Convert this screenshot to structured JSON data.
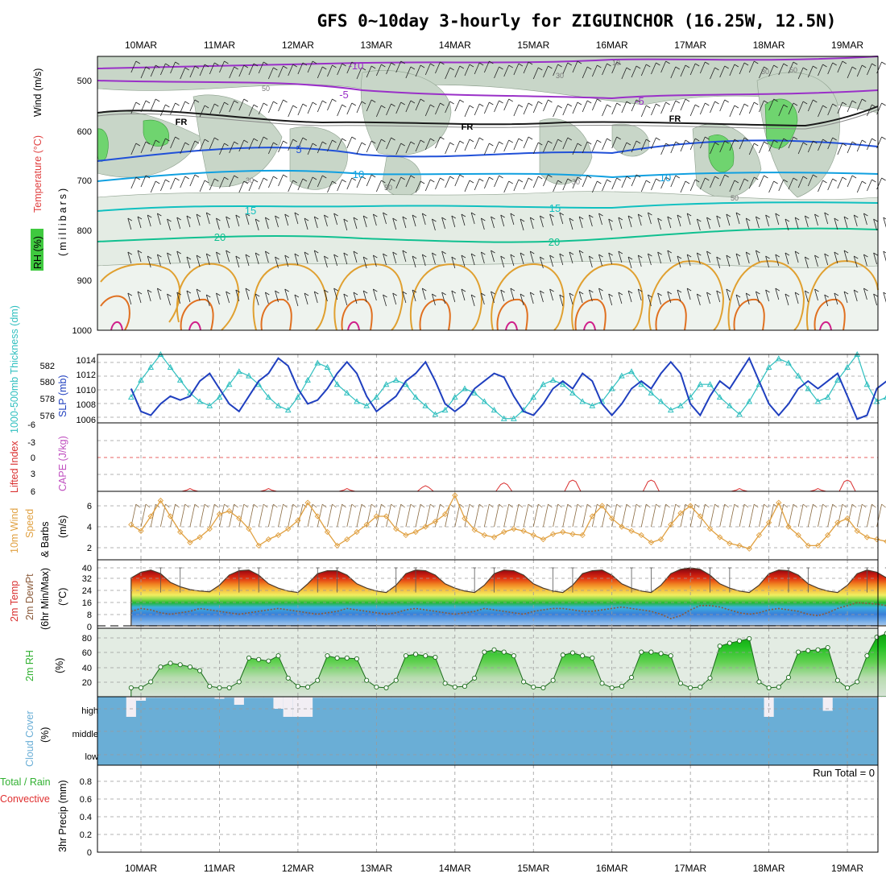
{
  "title": "GFS 0~10day 3-hourly for ZIGUINCHOR (16.25W, 12.5N)",
  "dates": [
    "10MAR",
    "11MAR",
    "12MAR",
    "13MAR",
    "14MAR",
    "15MAR",
    "16MAR",
    "17MAR",
    "18MAR",
    "19MAR"
  ],
  "colors": {
    "rh_legend": "#3fc93f",
    "slp": "#1f3fbf",
    "thickness": "#2fbfbf",
    "lifted_index": "#d93030",
    "cape": "#c050c0",
    "wind_speed": "#e0a040",
    "cloud": "#6aaed6",
    "precip_total": "#30b030",
    "precip_conv": "#e03030"
  },
  "panels": {
    "upper": {
      "ylabel_rh": "RH (%)",
      "ylabel_temp": "Temperature (°C)",
      "ylabel_wind": "Wind (m/s)",
      "ylabel_mb": "(millibars)",
      "pressure_ticks": [
        "500",
        "600",
        "700",
        "800",
        "900",
        "1000"
      ],
      "contour_labels": {
        "t_m10": "-10",
        "t_m5": "-5",
        "t_m5b": "-5",
        "fr1": "FR",
        "fr2": "FR",
        "fr3": "FR",
        "t_5": "5",
        "t_10": "10",
        "t_10b": "10",
        "t_15": "15",
        "t_15b": "15",
        "t_20": "20",
        "t_20b": "20",
        "rh_30": "30",
        "rh_30b": "30",
        "rh_50": "50",
        "rh_30c": "30",
        "rh_50b": "50",
        "rh_50c": "50",
        "rh_30d": "30",
        "rh_10": "10",
        "rh_50d": "50"
      }
    },
    "slp": {
      "ylabel_thick": "1000-500mb Thickness (dm)",
      "ylabel_slp": "SLP (mb)",
      "thick_ticks": [
        "582",
        "580",
        "578",
        "576"
      ],
      "slp_ticks": [
        "1014",
        "1012",
        "1010",
        "1008",
        "1006"
      ]
    },
    "cape": {
      "ylabel_li": "Lifted Index",
      "ylabel_cape": "CAPE (J/kg)",
      "li_ticks": [
        "-6",
        "-3",
        "0",
        "3",
        "6"
      ]
    },
    "wind10m": {
      "ylabel_a": "10m Wind",
      "ylabel_b": "Speed",
      "ylabel_c": "& Barbs",
      "ylabel_unit": "(m/s)",
      "ticks": [
        "6",
        "4",
        "2"
      ]
    },
    "temp2m": {
      "ylabel_a": "2m Temp",
      "ylabel_b": "2m DewPt",
      "ylabel_c": "(6hr Min/Max)",
      "ylabel_unit": "(°C)",
      "ticks": [
        "40",
        "32",
        "24",
        "16",
        "8",
        "0"
      ]
    },
    "rh2m": {
      "ylabel": "2m RH",
      "ylabel_unit": "(%)",
      "ticks": [
        "80",
        "60",
        "40",
        "20"
      ]
    },
    "cloud": {
      "ylabel": "Cloud Cover",
      "ylabel_unit": "(%)",
      "levels": [
        "high",
        "middle",
        "low"
      ]
    },
    "precip": {
      "ylabel_a": "Total / Rain",
      "ylabel_b": "Convective",
      "ylabel_c": "3hr Precip (mm)",
      "ticks": [
        "0.8",
        "0.6",
        "0.4",
        "0.2",
        "0"
      ],
      "run_total": "Run Total = 0"
    }
  },
  "chart_data": [
    {
      "type": "line",
      "title": "Sea level pressure and 1000-500mb thickness",
      "x": [
        "09 21Z",
        "10 00Z",
        "10 03Z",
        "10 06Z",
        "10 09Z",
        "10 12Z",
        "10 15Z",
        "10 18Z",
        "10 21Z",
        "11 00Z",
        "11 03Z",
        "11 06Z",
        "11 09Z",
        "11 12Z",
        "11 15Z",
        "11 18Z",
        "11 21Z",
        "12 00Z",
        "12 03Z",
        "12 06Z",
        "12 09Z",
        "12 12Z",
        "12 15Z",
        "12 18Z",
        "12 21Z",
        "13 00Z",
        "13 03Z",
        "13 06Z",
        "13 09Z",
        "13 12Z",
        "13 15Z",
        "13 18Z",
        "13 21Z",
        "14 00Z",
        "14 03Z",
        "14 06Z",
        "14 09Z",
        "14 12Z",
        "14 15Z",
        "14 18Z",
        "14 21Z",
        "15 00Z",
        "15 03Z",
        "15 06Z",
        "15 09Z",
        "15 12Z",
        "15 15Z",
        "15 18Z",
        "15 21Z",
        "16 00Z",
        "16 03Z",
        "16 06Z",
        "16 09Z",
        "16 12Z",
        "16 15Z",
        "16 18Z",
        "16 21Z",
        "17 00Z",
        "17 03Z",
        "17 06Z",
        "17 09Z",
        "17 12Z",
        "17 15Z",
        "17 18Z",
        "17 21Z",
        "18 00Z",
        "18 03Z",
        "18 06Z",
        "18 09Z",
        "18 12Z",
        "18 15Z",
        "18 18Z",
        "18 21Z",
        "19 00Z",
        "19 03Z",
        "19 06Z",
        "19 09Z",
        "19 12Z"
      ],
      "series": [
        {
          "name": "SLP (mb)",
          "axis": "right",
          "values": [
            1010,
            1007,
            1006.5,
            1008,
            1009,
            1008.5,
            1009,
            1011,
            1012,
            1010,
            1008,
            1007,
            1009,
            1011,
            1012,
            1014,
            1013,
            1010,
            1008,
            1008.5,
            1010,
            1012,
            1013.5,
            1012,
            1009,
            1007,
            1008,
            1009,
            1011,
            1012,
            1013.5,
            1011,
            1008,
            1007,
            1008,
            1010,
            1011,
            1012,
            1011.5,
            1009,
            1007,
            1006.5,
            1008,
            1010,
            1011,
            1010,
            1012,
            1011,
            1008,
            1006.5,
            1008,
            1010,
            1011,
            1010,
            1012,
            1013.5,
            1012,
            1008,
            1006.5,
            1009,
            1011,
            1010,
            1012,
            1014,
            1011,
            1008,
            1006.5,
            1008,
            1010,
            1011,
            1010,
            1011,
            1012,
            1009,
            1006,
            1006.5,
            1010,
            1011
          ]
        },
        {
          "name": "1000-500mb Thickness (dm)",
          "axis": "left",
          "values": [
            578.5,
            580.5,
            582,
            583.5,
            582,
            580.5,
            579,
            578,
            577.5,
            578.5,
            580,
            581.5,
            581,
            580,
            578.5,
            577.5,
            577,
            578.5,
            580.5,
            582.5,
            582,
            580,
            579,
            578,
            577.5,
            578.5,
            580,
            580.5,
            580,
            578.5,
            577.5,
            576.5,
            577,
            578.5,
            579.5,
            579,
            578,
            577,
            576,
            576,
            577,
            578.5,
            580,
            580.5,
            580,
            579,
            578,
            577.5,
            578,
            579.5,
            581,
            581.5,
            580,
            579,
            578,
            577,
            577.5,
            578.5,
            580,
            580,
            578.5,
            577.5,
            576.5,
            578,
            580,
            582,
            583,
            582.5,
            581,
            579.5,
            578,
            578.5,
            580.5,
            582,
            583.5,
            580,
            578,
            578.5
          ]
        }
      ],
      "ylim_left": [
        575.5,
        583.5
      ],
      "ylim_right": [
        1005.5,
        1014.5
      ]
    },
    {
      "type": "line",
      "title": "Lifted index and CAPE",
      "series": [
        {
          "name": "Lifted Index",
          "values_note": "lifted index near +6 with small negative excursions at midday",
          "peaks": [
            [
              "10 15Z",
              5.5
            ],
            [
              "11 15Z",
              5.5
            ],
            [
              "12 15Z",
              5.5
            ],
            [
              "13 15Z",
              5
            ],
            [
              "14 15Z",
              4.5
            ],
            [
              "15 12Z",
              4
            ],
            [
              "16 12Z",
              4
            ],
            [
              "17 15Z",
              5.5
            ],
            [
              "18 15Z",
              5.5
            ],
            [
              "19 00Z",
              4
            ]
          ]
        }
      ],
      "ylim": [
        6,
        -6
      ],
      "ticks": [
        -6,
        -3,
        0,
        3,
        6
      ]
    },
    {
      "type": "line",
      "title": "10m wind speed",
      "series": [
        {
          "name": "10m Wind Speed (m/s)",
          "values": [
            4.2,
            3.6,
            5,
            6.5,
            5,
            3.5,
            2.5,
            3,
            3.8,
            5.2,
            5.5,
            4.8,
            3.8,
            2.2,
            2.8,
            3.2,
            3.8,
            4.6,
            6.3,
            5,
            3.5,
            2.2,
            2.8,
            3.5,
            4.2,
            5,
            5,
            3.8,
            3.2,
            3.5,
            4,
            4.5,
            5.2,
            7,
            4.8,
            3.7,
            3.2,
            3,
            3.5,
            3.8,
            3.6,
            3.2,
            2.8,
            3.3,
            3.5,
            3.3,
            3.2,
            5,
            6,
            4.8,
            4,
            3.6,
            3.2,
            2.5,
            2.8,
            4.2,
            5.3,
            6,
            5,
            3.8,
            3,
            2.4,
            2.2,
            1.9,
            3.2,
            4.4,
            6.3,
            4,
            3.2,
            2.2,
            2.2,
            3.2,
            4.4,
            4.8,
            3.6,
            3,
            2.8,
            2.6
          ]
        }
      ],
      "ylim": [
        1,
        7
      ],
      "ticks": [
        2,
        4,
        6
      ]
    },
    {
      "type": "area",
      "title": "2m temperature and dewpoint",
      "series": [
        {
          "name": "2m Temp",
          "values": [
            33,
            37,
            38.5,
            36,
            30,
            27,
            25,
            24,
            23.5,
            28,
            35,
            38,
            38.5,
            35,
            29,
            26,
            24,
            23,
            29,
            36,
            38,
            38,
            35,
            29,
            26,
            24,
            23,
            28,
            36,
            38.5,
            38,
            35,
            29,
            26,
            24,
            23,
            28,
            36,
            38.5,
            38,
            35,
            29,
            26,
            24,
            23,
            28,
            36,
            38,
            38.5,
            35,
            29,
            26,
            24,
            23,
            28,
            36,
            39,
            40,
            39,
            35,
            29,
            26,
            24,
            23,
            28,
            36,
            38.5,
            38,
            35,
            29,
            26,
            24,
            23,
            28,
            36,
            38.5,
            37,
            33,
            25,
            21,
            20,
            19
          ]
        },
        {
          "name": "2m DewPt",
          "values": [
            10,
            12,
            11,
            9,
            8,
            9,
            10,
            12,
            11,
            10,
            9,
            8,
            9,
            10,
            11,
            12,
            11,
            10,
            9,
            8,
            9,
            10,
            12,
            11,
            10,
            9,
            8,
            9,
            11,
            12,
            11,
            10,
            9,
            8,
            9,
            10,
            12,
            11,
            10,
            9,
            8,
            10,
            11,
            12,
            12,
            11,
            10,
            10,
            11,
            12,
            13,
            12,
            11,
            10,
            8,
            5,
            7,
            11,
            14,
            14,
            13,
            11,
            9,
            8,
            9,
            11,
            12,
            11,
            10,
            8,
            7,
            9,
            12,
            14,
            16,
            15.5,
            15,
            14
          ]
        }
      ],
      "ylim": [
        0,
        44
      ],
      "ticks": [
        0,
        8,
        16,
        24,
        32,
        40
      ]
    },
    {
      "type": "area",
      "title": "2m relative humidity",
      "series": [
        {
          "name": "2m RH (%)",
          "values": [
            12,
            12,
            20,
            40,
            45,
            43,
            40,
            35,
            14,
            12,
            12,
            20,
            52,
            50,
            48,
            55,
            25,
            14,
            13,
            22,
            55,
            52,
            52,
            51,
            22,
            13,
            12,
            22,
            55,
            57,
            55,
            53,
            18,
            13,
            14,
            25,
            60,
            63,
            60,
            55,
            20,
            13,
            12,
            22,
            56,
            59,
            55,
            52,
            18,
            12,
            14,
            26,
            60,
            60,
            58,
            55,
            18,
            12,
            13,
            25,
            68,
            72,
            75,
            78,
            20,
            12,
            13,
            26,
            60,
            62,
            63,
            66,
            22,
            12,
            20,
            55,
            80,
            85
          ]
        }
      ],
      "ylim": [
        0,
        90
      ],
      "ticks": [
        20,
        40,
        60,
        80
      ]
    },
    {
      "type": "bar",
      "title": "Cloud cover (%)",
      "series": [
        {
          "name": "high",
          "values": [
            100,
            20,
            5,
            5,
            5,
            5,
            5,
            5,
            5,
            10,
            5,
            40,
            5,
            5,
            5,
            60,
            100,
            100,
            100,
            5,
            5,
            5,
            5,
            5,
            5,
            5,
            5,
            5,
            5,
            5,
            5,
            5,
            5,
            5,
            5,
            5,
            5,
            5,
            5,
            5,
            5,
            5,
            5,
            5,
            5,
            5,
            5,
            5,
            5,
            5,
            5,
            5,
            5,
            5,
            5,
            5,
            5,
            5,
            5,
            5,
            5,
            5,
            5,
            5,
            5,
            100,
            5,
            5,
            5,
            5,
            5,
            70,
            5,
            5,
            5,
            5,
            5,
            5
          ]
        },
        {
          "name": "middle",
          "values": [
            0,
            0,
            0,
            0,
            0,
            0,
            0,
            0,
            0,
            0,
            0,
            0,
            0,
            0,
            0,
            0,
            0,
            0,
            0,
            0,
            0,
            0,
            0,
            0,
            0,
            0,
            0,
            0,
            0,
            0,
            0,
            0,
            0,
            0,
            0,
            0,
            0,
            0,
            0,
            0,
            0,
            0,
            0,
            0,
            0,
            0,
            0,
            0,
            0,
            0,
            0,
            0,
            0,
            0,
            0,
            0,
            0,
            0,
            0,
            0,
            0,
            0,
            0,
            0,
            0,
            0,
            0,
            0,
            0,
            0,
            0,
            0,
            0,
            0,
            0,
            0,
            0,
            0
          ]
        },
        {
          "name": "low",
          "values": [
            0,
            0,
            0,
            0,
            0,
            0,
            0,
            0,
            0,
            0,
            0,
            0,
            0,
            0,
            0,
            0,
            0,
            0,
            0,
            0,
            0,
            0,
            0,
            0,
            0,
            0,
            0,
            0,
            0,
            0,
            0,
            0,
            0,
            0,
            0,
            0,
            0,
            0,
            0,
            0,
            0,
            0,
            0,
            0,
            0,
            0,
            0,
            0,
            0,
            0,
            0,
            0,
            0,
            0,
            0,
            0,
            0,
            0,
            0,
            0,
            0,
            0,
            0,
            0,
            0,
            0,
            0,
            0,
            0,
            0,
            0,
            0,
            0,
            0,
            0,
            0,
            0,
            0
          ]
        }
      ]
    },
    {
      "type": "bar",
      "title": "3hr Precip (mm)",
      "series": [
        {
          "name": "Total / Rain",
          "values": []
        },
        {
          "name": "Convective",
          "values": []
        }
      ],
      "ylim": [
        0,
        1
      ],
      "ticks": [
        0,
        0.2,
        0.4,
        0.6,
        0.8
      ]
    }
  ]
}
